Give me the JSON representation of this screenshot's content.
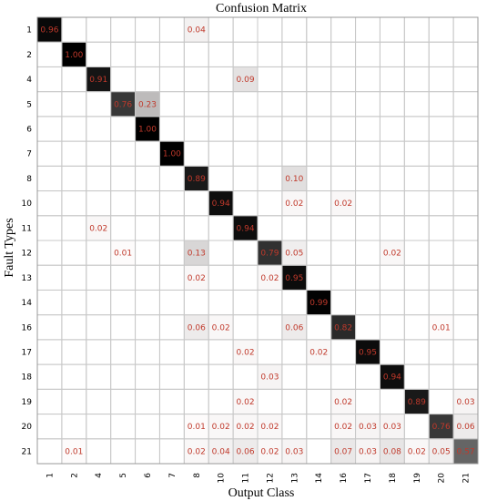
{
  "chart_data": {
    "type": "heatmap",
    "title": "Confusion Matrix",
    "xlabel": "Output Class",
    "ylabel": "Fault Types",
    "row_labels": [
      "1",
      "2",
      "4",
      "5",
      "6",
      "7",
      "8",
      "10",
      "11",
      "12",
      "13",
      "14",
      "16",
      "17",
      "18",
      "19",
      "20",
      "21"
    ],
    "col_labels": [
      "1",
      "2",
      "4",
      "5",
      "6",
      "7",
      "8",
      "10",
      "11",
      "12",
      "13",
      "14",
      "16",
      "17",
      "18",
      "19",
      "20",
      "21"
    ],
    "colormap": "white-to-black",
    "label_color": "#c0392b",
    "cells": [
      {
        "row": "1",
        "col": "1",
        "value": "0.96"
      },
      {
        "row": "1",
        "col": "8",
        "value": "0.04"
      },
      {
        "row": "2",
        "col": "2",
        "value": "1.00"
      },
      {
        "row": "4",
        "col": "4",
        "value": "0.91"
      },
      {
        "row": "4",
        "col": "11",
        "value": "0.09"
      },
      {
        "row": "5",
        "col": "5",
        "value": "0.76"
      },
      {
        "row": "5",
        "col": "6",
        "value": "0.23"
      },
      {
        "row": "6",
        "col": "6",
        "value": "1.00"
      },
      {
        "row": "7",
        "col": "7",
        "value": "1.00"
      },
      {
        "row": "8",
        "col": "8",
        "value": "0.89"
      },
      {
        "row": "8",
        "col": "13",
        "value": "0.10"
      },
      {
        "row": "10",
        "col": "10",
        "value": "0.94"
      },
      {
        "row": "10",
        "col": "13",
        "value": "0.02"
      },
      {
        "row": "10",
        "col": "16",
        "value": "0.02"
      },
      {
        "row": "11",
        "col": "4",
        "value": "0.02"
      },
      {
        "row": "11",
        "col": "11",
        "value": "0.94"
      },
      {
        "row": "12",
        "col": "5",
        "value": "0.01"
      },
      {
        "row": "12",
        "col": "8",
        "value": "0.13"
      },
      {
        "row": "12",
        "col": "12",
        "value": "0.79"
      },
      {
        "row": "12",
        "col": "13",
        "value": "0.05"
      },
      {
        "row": "12",
        "col": "18",
        "value": "0.02"
      },
      {
        "row": "13",
        "col": "8",
        "value": "0.02"
      },
      {
        "row": "13",
        "col": "12",
        "value": "0.02"
      },
      {
        "row": "13",
        "col": "13",
        "value": "0.95"
      },
      {
        "row": "14",
        "col": "14",
        "value": "0.99"
      },
      {
        "row": "16",
        "col": "8",
        "value": "0.06"
      },
      {
        "row": "16",
        "col": "10",
        "value": "0.02"
      },
      {
        "row": "16",
        "col": "13",
        "value": "0.06"
      },
      {
        "row": "16",
        "col": "16",
        "value": "0.82"
      },
      {
        "row": "16",
        "col": "20",
        "value": "0.01"
      },
      {
        "row": "17",
        "col": "11",
        "value": "0.02"
      },
      {
        "row": "17",
        "col": "14",
        "value": "0.02"
      },
      {
        "row": "17",
        "col": "17",
        "value": "0.95"
      },
      {
        "row": "18",
        "col": "12",
        "value": "0.03"
      },
      {
        "row": "18",
        "col": "18",
        "value": "0.94"
      },
      {
        "row": "19",
        "col": "11",
        "value": "0.02"
      },
      {
        "row": "19",
        "col": "16",
        "value": "0.02"
      },
      {
        "row": "19",
        "col": "19",
        "value": "0.89"
      },
      {
        "row": "19",
        "col": "21",
        "value": "0.03"
      },
      {
        "row": "20",
        "col": "8",
        "value": "0.01"
      },
      {
        "row": "20",
        "col": "10",
        "value": "0.02"
      },
      {
        "row": "20",
        "col": "11",
        "value": "0.02"
      },
      {
        "row": "20",
        "col": "12",
        "value": "0.02"
      },
      {
        "row": "20",
        "col": "16",
        "value": "0.02"
      },
      {
        "row": "20",
        "col": "17",
        "value": "0.03"
      },
      {
        "row": "20",
        "col": "18",
        "value": "0.03"
      },
      {
        "row": "20",
        "col": "20",
        "value": "0.76"
      },
      {
        "row": "20",
        "col": "21",
        "value": "0.06"
      },
      {
        "row": "21",
        "col": "2",
        "value": "0.01"
      },
      {
        "row": "21",
        "col": "8",
        "value": "0.02"
      },
      {
        "row": "21",
        "col": "10",
        "value": "0.04"
      },
      {
        "row": "21",
        "col": "11",
        "value": "0.06"
      },
      {
        "row": "21",
        "col": "12",
        "value": "0.02"
      },
      {
        "row": "21",
        "col": "13",
        "value": "0.03"
      },
      {
        "row": "21",
        "col": "16",
        "value": "0.07"
      },
      {
        "row": "21",
        "col": "17",
        "value": "0.03"
      },
      {
        "row": "21",
        "col": "18",
        "value": "0.08"
      },
      {
        "row": "21",
        "col": "19",
        "value": "0.02"
      },
      {
        "row": "21",
        "col": "20",
        "value": "0.05"
      },
      {
        "row": "21",
        "col": "21",
        "value": "0.57"
      }
    ]
  }
}
